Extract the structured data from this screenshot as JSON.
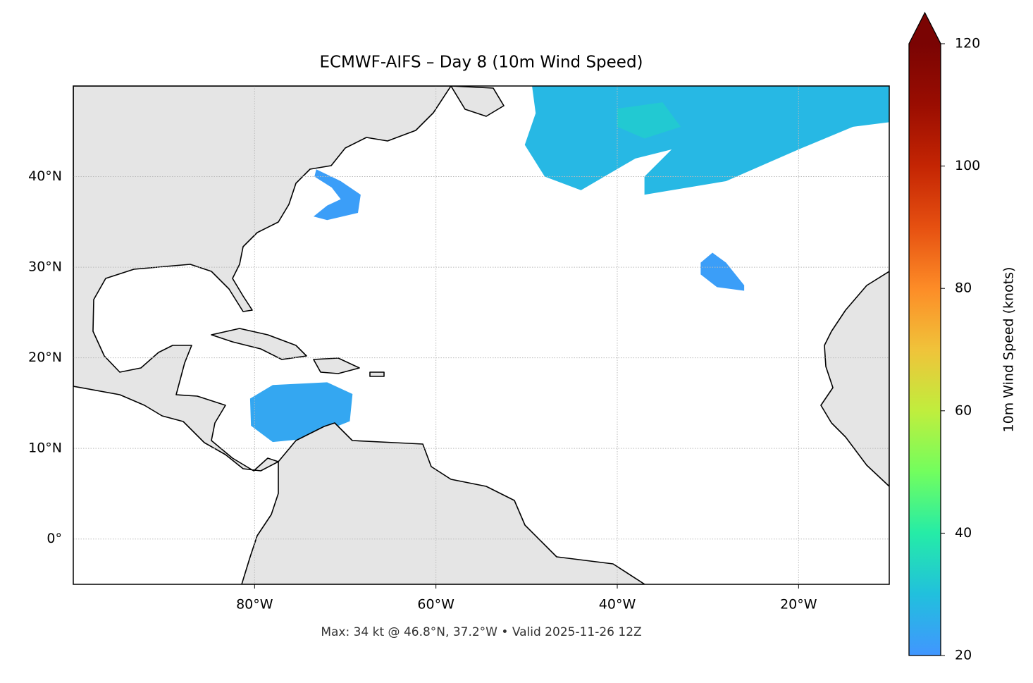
{
  "chart_data": {
    "type": "map",
    "title": "ECMWF-AIFS – Day 8 (10m Wind Speed)",
    "footer": "Max: 34 kt @ 46.8°N, 37.2°W • Valid 2025-11-26 12Z",
    "xlim": [
      -100,
      -10
    ],
    "ylim": [
      -5,
      50
    ],
    "xticks": [
      {
        "value": -80,
        "label": "80°W"
      },
      {
        "value": -60,
        "label": "60°W"
      },
      {
        "value": -40,
        "label": "40°W"
      },
      {
        "value": -20,
        "label": "20°W"
      }
    ],
    "yticks": [
      {
        "value": 0,
        "label": "0°"
      },
      {
        "value": 10,
        "label": "10°N"
      },
      {
        "value": 20,
        "label": "20°N"
      },
      {
        "value": 30,
        "label": "30°N"
      },
      {
        "value": 40,
        "label": "40°N"
      }
    ],
    "grid": true,
    "colorbar": {
      "label": "10m Wind Speed (knots)",
      "lim": [
        20,
        120
      ],
      "ticks": [
        20,
        40,
        60,
        80,
        100,
        120
      ],
      "extend": "max",
      "colors": [
        "#4196ff",
        "#21c0dd",
        "#25eca7",
        "#72fe5e",
        "#c0ee3d",
        "#f0c33a",
        "#fd8c27",
        "#e65011",
        "#c42503",
        "#9a0d01",
        "#7a0403"
      ]
    },
    "wind_areas": [
      {
        "speed": 28,
        "outline": [
          [
            -49.4,
            50
          ],
          [
            -10,
            50
          ],
          [
            -10,
            46
          ],
          [
            -14,
            45.5
          ],
          [
            -20,
            43
          ],
          [
            -28,
            39.5
          ],
          [
            -37,
            38
          ],
          [
            -37,
            40
          ],
          [
            -34,
            43
          ],
          [
            -38,
            42
          ],
          [
            -44,
            38.5
          ],
          [
            -48,
            40
          ],
          [
            -50.2,
            43.5
          ],
          [
            -49,
            47
          ]
        ]
      },
      {
        "speed": 32,
        "outline": [
          [
            -40,
            47.5
          ],
          [
            -35,
            48.2
          ],
          [
            -33,
            45.5
          ],
          [
            -37,
            44.2
          ],
          [
            -40,
            45.5
          ]
        ]
      },
      {
        "speed": 24,
        "outline": [
          [
            -80.5,
            15.5
          ],
          [
            -78,
            17
          ],
          [
            -72,
            17.3
          ],
          [
            -69.2,
            16
          ],
          [
            -69.5,
            13
          ],
          [
            -72,
            12
          ],
          [
            -75,
            11
          ],
          [
            -78,
            10.7
          ],
          [
            -80.4,
            12.5
          ]
        ]
      },
      {
        "speed": 22,
        "outline": [
          [
            -73.2,
            40.8
          ],
          [
            -70.5,
            39.5
          ],
          [
            -68.3,
            38
          ],
          [
            -68.6,
            36
          ],
          [
            -72,
            35.2
          ],
          [
            -73.5,
            35.6
          ],
          [
            -72,
            36.8
          ],
          [
            -70.5,
            37.5
          ],
          [
            -71.5,
            38.8
          ],
          [
            -73.4,
            40
          ]
        ]
      },
      {
        "speed": 22,
        "outline": [
          [
            -30.8,
            30.5
          ],
          [
            -29.5,
            31.6
          ],
          [
            -28,
            30.5
          ],
          [
            -26,
            28
          ],
          [
            -26,
            27.4
          ],
          [
            -29,
            27.8
          ],
          [
            -30.8,
            29.2
          ]
        ]
      }
    ]
  }
}
